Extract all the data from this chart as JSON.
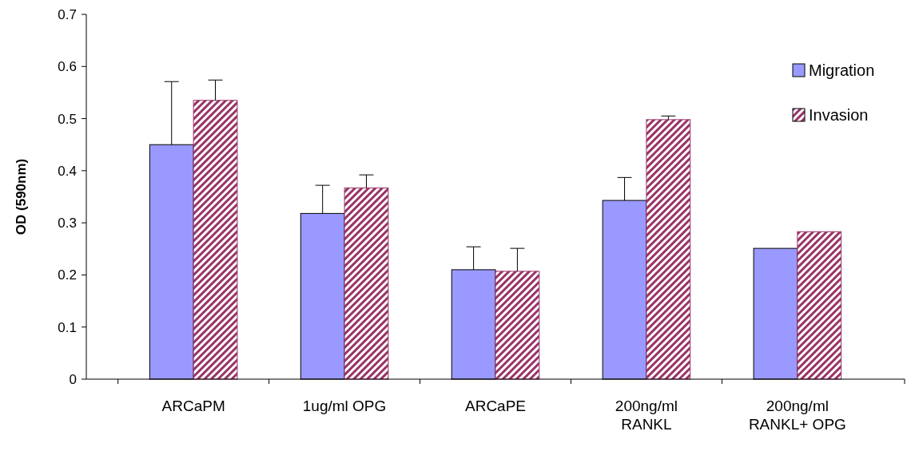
{
  "chart_data": {
    "type": "bar",
    "ylabel": "OD (590nm)",
    "categories": [
      "ARCaPM",
      "1ug/ml OPG",
      "ARCaPE",
      "200ng/ml\nRANKL",
      "200ng/ml\nRANKL+ OPG"
    ],
    "series": [
      {
        "name": "Migration",
        "color": "#9999ff",
        "values": [
          0.45,
          0.318,
          0.21,
          0.343,
          0.251
        ],
        "errors": [
          [
            0.45,
            0.571
          ],
          [
            0.318,
            0.372
          ],
          [
            0.21,
            0.254
          ],
          [
            0.343,
            0.387
          ],
          null
        ]
      },
      {
        "name": "Invasion",
        "color": "#993366",
        "values": [
          0.535,
          0.367,
          0.207,
          0.498,
          0.283
        ],
        "errors": [
          [
            0.535,
            0.574
          ],
          [
            0.367,
            0.392
          ],
          [
            0.207,
            0.251
          ],
          [
            0.498,
            0.505
          ],
          null
        ]
      }
    ],
    "ylim": [
      0,
      0.7
    ],
    "yticks": [
      0,
      0.1,
      0.2,
      0.3,
      0.4,
      0.5,
      0.6,
      0.7
    ],
    "grid": false,
    "legend": "top right"
  }
}
